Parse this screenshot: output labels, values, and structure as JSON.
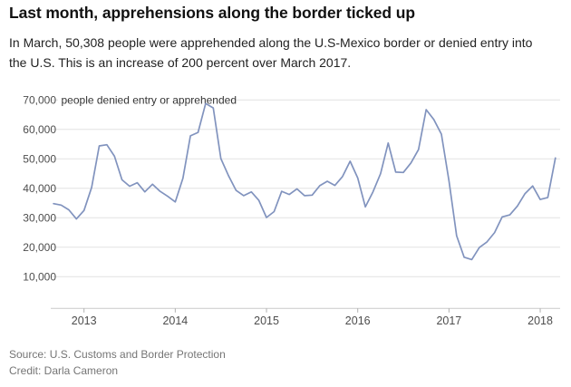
{
  "header": {
    "title": "Last month, apprehensions along the border ticked up",
    "subtitle": "In March, 50,308 people were apprehended along the U.S-Mexico border or denied entry into the U.S. This is an increase of 200 percent over March 2017."
  },
  "footer": {
    "source": "Source: U.S. Customs and Border Protection",
    "credit": "Credit: Darla Cameron"
  },
  "chart_data": {
    "type": "line",
    "title": "Last month, apprehensions along the border ticked up",
    "series_label": "people denied entry or apprehended",
    "frequency": "monthly",
    "x_range": [
      "2012-09",
      "2018-03"
    ],
    "x_tick_labels": [
      "2013",
      "2014",
      "2015",
      "2016",
      "2017",
      "2018"
    ],
    "y_ticks": [
      10000,
      20000,
      30000,
      40000,
      50000,
      60000,
      70000
    ],
    "ylim": [
      10000,
      70000
    ],
    "grid": true,
    "legend_position": "top-left-inline",
    "colors": {
      "line": "#8193be",
      "grid": "#e2e2e2",
      "axis": "#c9c9c9",
      "tick": "#b0b0b0"
    },
    "values": [
      34800,
      34300,
      32700,
      29600,
      32500,
      40300,
      54400,
      54800,
      50900,
      42900,
      40700,
      41900,
      38800,
      41400,
      39000,
      37300,
      35400,
      43400,
      57800,
      59000,
      68800,
      67300,
      50100,
      44300,
      39300,
      37500,
      38800,
      35900,
      30100,
      32100,
      39000,
      37900,
      39800,
      37500,
      37700,
      40900,
      42400,
      41000,
      44000,
      49200,
      43500,
      33700,
      38800,
      45000,
      55400,
      45500,
      45400,
      48600,
      53200,
      66700,
      63400,
      58400,
      42500,
      23900,
      16600,
      15800,
      19900,
      21800,
      25000,
      30300,
      31000,
      34000,
      38200,
      40800,
      36200,
      36900,
      50308
    ]
  }
}
